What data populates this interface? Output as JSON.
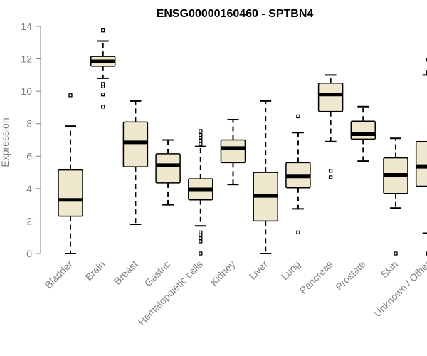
{
  "colors": {
    "box_fill": "#efe8cf",
    "box_stroke": "#000000",
    "axis": "#808080",
    "text": "#808080",
    "title": "#000000"
  },
  "chart_data": {
    "type": "boxplot",
    "title": "ENSG00000160460 - SPTBN4",
    "xlabel": "",
    "ylabel": "Expression",
    "ylim": [
      0,
      14
    ],
    "yticks": [
      0,
      2,
      4,
      6,
      8,
      10,
      12,
      14
    ],
    "grid": false,
    "categories": [
      "Bladder",
      "Brain",
      "Breast",
      "Gastric",
      "Hematopoietic cells",
      "Kidney",
      "Liver",
      "Lung",
      "Pancreas",
      "Prostate",
      "Skin",
      "Unknown / Other"
    ],
    "boxes": [
      {
        "category": "Bladder",
        "whisker_low": 0.0,
        "q1": 2.3,
        "median": 3.3,
        "q3": 5.15,
        "whisker_high": 7.85,
        "outliers": [
          9.75
        ]
      },
      {
        "category": "Brain",
        "whisker_low": 10.8,
        "q1": 11.55,
        "median": 11.85,
        "q3": 12.15,
        "whisker_high": 13.1,
        "outliers": [
          9.05,
          9.8,
          10.3,
          10.45,
          13.75
        ]
      },
      {
        "category": "Breast",
        "whisker_low": 1.8,
        "q1": 5.35,
        "median": 6.85,
        "q3": 8.1,
        "whisker_high": 9.4,
        "outliers": []
      },
      {
        "category": "Gastric",
        "whisker_low": 3.0,
        "q1": 4.35,
        "median": 5.45,
        "q3": 6.15,
        "whisker_high": 7.0,
        "outliers": []
      },
      {
        "category": "Hematopoietic cells",
        "whisker_low": 1.7,
        "q1": 3.3,
        "median": 3.95,
        "q3": 4.6,
        "whisker_high": 6.6,
        "outliers": [
          0.0,
          0.75,
          0.95,
          1.15,
          1.3,
          6.75,
          6.95,
          7.15,
          7.3,
          7.55
        ]
      },
      {
        "category": "Kidney",
        "whisker_low": 4.25,
        "q1": 5.6,
        "median": 6.5,
        "q3": 7.0,
        "whisker_high": 8.25,
        "outliers": []
      },
      {
        "category": "Liver",
        "whisker_low": 0.0,
        "q1": 2.0,
        "median": 3.55,
        "q3": 5.0,
        "whisker_high": 9.4,
        "outliers": []
      },
      {
        "category": "Lung",
        "whisker_low": 2.75,
        "q1": 4.05,
        "median": 4.75,
        "q3": 5.6,
        "whisker_high": 7.45,
        "outliers": [
          1.3,
          8.45
        ]
      },
      {
        "category": "Pancreas",
        "whisker_low": 6.9,
        "q1": 8.75,
        "median": 9.8,
        "q3": 10.5,
        "whisker_high": 11.0,
        "outliers": [
          4.7,
          5.1
        ]
      },
      {
        "category": "Prostate",
        "whisker_low": 5.7,
        "q1": 7.05,
        "median": 7.35,
        "q3": 8.15,
        "whisker_high": 9.05,
        "outliers": []
      },
      {
        "category": "Skin",
        "whisker_low": 2.8,
        "q1": 3.7,
        "median": 4.85,
        "q3": 5.9,
        "whisker_high": 7.1,
        "outliers": [
          0.0
        ]
      },
      {
        "category": "Unknown / Other",
        "whisker_low": 1.25,
        "q1": 4.15,
        "median": 5.35,
        "q3": 6.9,
        "whisker_high": 11.0,
        "outliers": [
          0.0,
          11.15,
          11.95
        ]
      }
    ]
  }
}
